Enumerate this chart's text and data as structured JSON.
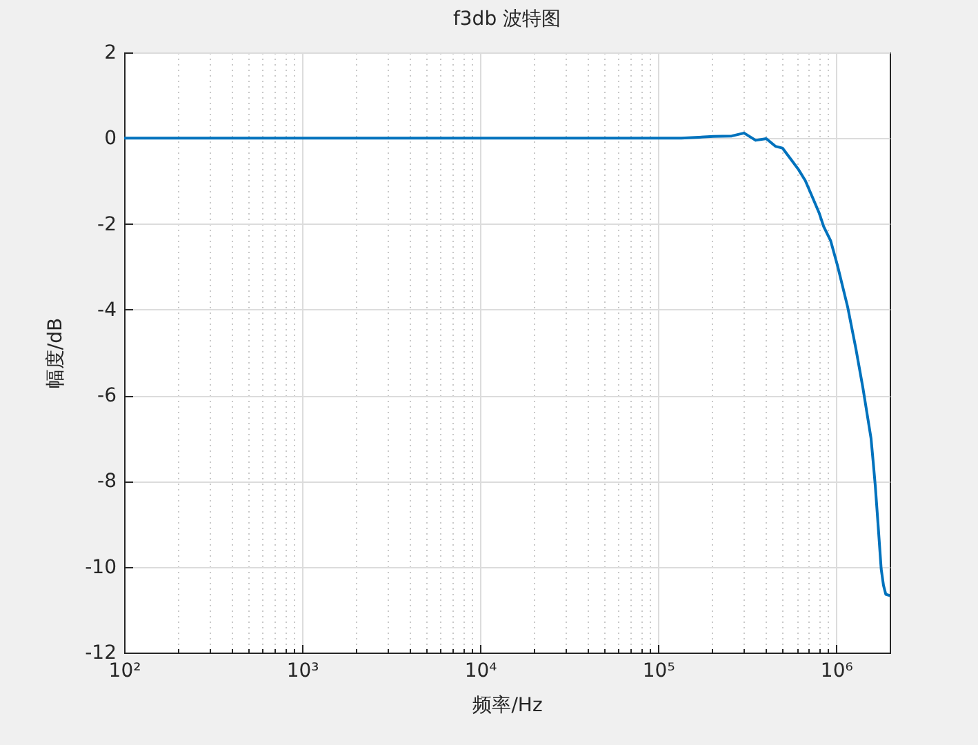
{
  "chart_data": {
    "type": "line",
    "title": "f3db 波特图",
    "xlabel": "频率/Hz",
    "ylabel": "幅度/dB",
    "log": "x",
    "grid": true,
    "x": [
      100,
      1000,
      10000,
      100000,
      135000,
      204000,
      259000,
      304000,
      353000,
      405000,
      456000,
      499000,
      561000,
      614000,
      671000,
      735000,
      802000,
      851000,
      931000,
      1019000,
      1161000,
      1291000,
      1413000,
      1570000,
      1618000,
      1660000,
      1718000,
      1791000,
      1845000,
      1901000,
      2000000
    ],
    "series": [
      {
        "color": "#0072bd",
        "values": [
          0,
          0,
          0,
          0,
          0,
          0.04,
          0.05,
          0.12,
          -0.05,
          -0.01,
          -0.19,
          -0.23,
          -0.51,
          -0.73,
          -0.99,
          -1.37,
          -1.74,
          -2.06,
          -2.39,
          -2.98,
          -3.94,
          -4.91,
          -5.82,
          -7.0,
          -7.59,
          -8.12,
          -8.98,
          -10.05,
          -10.43,
          -10.64,
          -10.67
        ]
      }
    ],
    "xlim": [
      100,
      2000000
    ],
    "xticks": [
      {
        "value": 100,
        "label": "10²"
      },
      {
        "value": 200,
        "label": null
      },
      {
        "value": 300,
        "label": null
      },
      {
        "value": 400,
        "label": null
      },
      {
        "value": 500,
        "label": null
      },
      {
        "value": 600,
        "label": null
      },
      {
        "value": 700,
        "label": null
      },
      {
        "value": 800,
        "label": null
      },
      {
        "value": 900,
        "label": null
      },
      {
        "value": 1000,
        "label": "10³"
      },
      {
        "value": 2000,
        "label": null
      },
      {
        "value": 3000,
        "label": null
      },
      {
        "value": 4000,
        "label": null
      },
      {
        "value": 5000,
        "label": null
      },
      {
        "value": 6000,
        "label": null
      },
      {
        "value": 7000,
        "label": null
      },
      {
        "value": 8000,
        "label": null
      },
      {
        "value": 9000,
        "label": null
      },
      {
        "value": 10000,
        "label": "10⁴"
      },
      {
        "value": 20000,
        "label": null
      },
      {
        "value": 30000,
        "label": null
      },
      {
        "value": 40000,
        "label": null
      },
      {
        "value": 50000,
        "label": null
      },
      {
        "value": 60000,
        "label": null
      },
      {
        "value": 70000,
        "label": null
      },
      {
        "value": 80000,
        "label": null
      },
      {
        "value": 90000,
        "label": null
      },
      {
        "value": 100000,
        "label": "10⁵"
      },
      {
        "value": 200000,
        "label": null
      },
      {
        "value": 300000,
        "label": null
      },
      {
        "value": 400000,
        "label": null
      },
      {
        "value": 500000,
        "label": null
      },
      {
        "value": 600000,
        "label": null
      },
      {
        "value": 700000,
        "label": null
      },
      {
        "value": 800000,
        "label": null
      },
      {
        "value": 900000,
        "label": null
      },
      {
        "value": 1000000,
        "label": "10⁶"
      }
    ],
    "ylim": [
      -12,
      2
    ],
    "yticks": [
      -12,
      -10,
      -8,
      -6,
      -4,
      -2,
      0,
      2
    ]
  }
}
